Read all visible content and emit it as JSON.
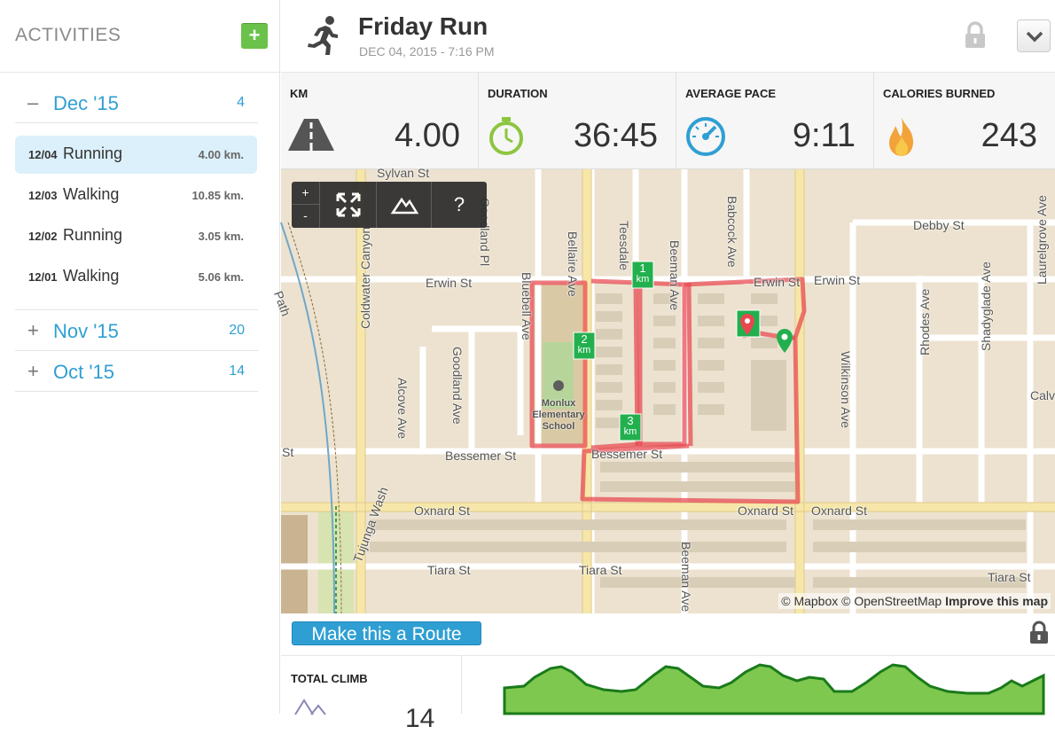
{
  "sidebar": {
    "title": "ACTIVITIES",
    "add_label": "+",
    "months": [
      {
        "sign": "–",
        "name": "Dec '15",
        "count": "4"
      },
      {
        "sign": "+",
        "name": "Nov '15",
        "count": "20"
      },
      {
        "sign": "+",
        "name": "Oct '15",
        "count": "14"
      }
    ],
    "activities": [
      {
        "date": "12/04",
        "type": "Running",
        "distance": "4.00 km."
      },
      {
        "date": "12/03",
        "type": "Walking",
        "distance": "10.85 km."
      },
      {
        "date": "12/02",
        "type": "Running",
        "distance": "3.05 km."
      },
      {
        "date": "12/01",
        "type": "Walking",
        "distance": "5.06 km."
      }
    ]
  },
  "header": {
    "title": "Friday Run",
    "subtitle": "DEC 04, 2015  -  7:16 PM",
    "icon": "runner-icon"
  },
  "stats": [
    {
      "label": "KM",
      "value": "4.00",
      "icon": "road-icon"
    },
    {
      "label": "DURATION",
      "value": "36:45",
      "icon": "stopwatch-icon"
    },
    {
      "label": "AVERAGE PACE",
      "value": "9:11",
      "icon": "speedometer-icon"
    },
    {
      "label": "CALORIES BURNED",
      "value": "243",
      "icon": "flame-icon"
    }
  ],
  "map": {
    "tools": {
      "zoom_in": "+",
      "zoom_out": "-",
      "help": "?"
    },
    "attribution": {
      "mapbox": "© Mapbox",
      "osm": "© OpenStreetMap",
      "improve": "Improve this map"
    },
    "labels": {
      "erwin_st_1": "Erwin St",
      "erwin_st_2": "Erwin St",
      "erwin_st_3": "Erwin St",
      "bessemer_st_1": "Bessemer St",
      "bessemer_st_2": "Bessemer St",
      "oxnard_st_1": "Oxnard St",
      "oxnard_st_2": "Oxnard St",
      "oxnard_st_3": "Oxnard St",
      "tiara_st_1": "Tiara St",
      "tiara_st_2": "Tiara St",
      "tiara_st_3": "Tiara St",
      "debby_st": "Debby St",
      "sylvan_st": "Sylvan St",
      "coldwater": "Coldwater Canyon",
      "bluebell": "Bluebell Ave",
      "goodland_pl": "Goodland Pl",
      "goodland_ave": "Goodland Ave",
      "bellaire": "Bellaire Ave",
      "teesdale": "Teesdale",
      "beeman_1": "Beeman Ave",
      "beeman_2": "Beeman Ave",
      "babcock": "Babcock Ave",
      "alcove": "Alcove Ave",
      "wilkinson": "Wilkinson Ave",
      "rhodes": "Rhodes Ave",
      "shadyglade": "Shadyglade Ave",
      "laurelgrove": "Laurelgrove Ave",
      "tujunga": "Tujunga Wash",
      "path": "Path",
      "calv": "Calv",
      "st_left": "St",
      "school": "Monlux Elementary School",
      "km1": "1",
      "km2": "2",
      "km3": "3",
      "km_unit": "km"
    }
  },
  "route_button": "Make this a Route",
  "climb": {
    "label": "TOTAL CLIMB",
    "value": "14"
  },
  "colors": {
    "accent": "#2f9fd3",
    "add_green": "#6bc24a",
    "route": "#e8474f",
    "elevation": "#7ec850",
    "elevation_stroke": "#1a7a1a"
  }
}
